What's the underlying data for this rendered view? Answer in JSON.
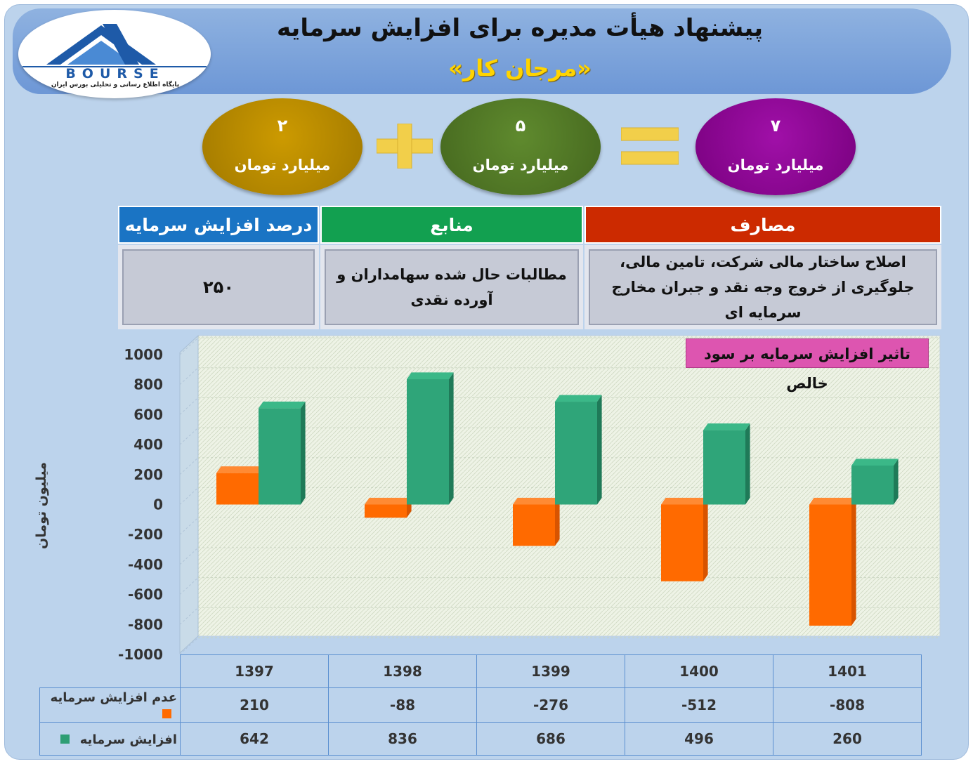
{
  "header": {
    "title": "پیشنهاد هیأت مدیره برای افزایش سرمایه",
    "subtitle": "«مرجان کار»"
  },
  "logo": {
    "word": "BOURSE",
    "tagline": "پایگاه اطلاع رسانی و تحلیلی بورس ایران"
  },
  "equation": {
    "left": {
      "value": "۲",
      "unit": "میلیارد تومان",
      "color": "#cc9a00"
    },
    "middle": {
      "value": "۵",
      "unit": "میلیارد تومان",
      "color": "#5f8a2e"
    },
    "right": {
      "value": "۷",
      "unit": "میلیارد تومان",
      "color": "#a010a8"
    },
    "plus_icon": "plus-icon",
    "equals_icon": "equals-icon",
    "operator_color": "#f2cf4a"
  },
  "info_table": {
    "headers": {
      "percent": "درصد افزایش سرمایه",
      "sources": "منابع",
      "uses": "مصارف"
    },
    "header_colors": {
      "percent": "#1a74c4",
      "sources": "#12a050",
      "uses": "#cc2a00"
    },
    "values": {
      "percent": "۲۵۰",
      "sources": "مطالبات حال شده سهامداران و آورده نقدی",
      "uses": "اصلاح ساختار مالی شرکت، تامین مالی، جلوگیری از خروج وجه نقد و جبران مخارج سرمایه ای"
    }
  },
  "chart_data": {
    "type": "bar",
    "title": "تاثیر افزایش سرمایه بر سود خالص",
    "ylabel": "میلیون تومان",
    "ylim": [
      -1000,
      1000
    ],
    "yticks": [
      1000,
      800,
      600,
      400,
      200,
      0,
      -200,
      -400,
      -600,
      -800,
      -1000
    ],
    "categories": [
      "1397",
      "1398",
      "1399",
      "1400",
      "1401"
    ],
    "series": [
      {
        "name": "عدم افزایش سرمایه",
        "values": [
          210,
          -88,
          -276,
          -512,
          -808
        ],
        "color": "#ff6a00"
      },
      {
        "name": "افزایش سرمایه",
        "values": [
          642,
          836,
          686,
          496,
          260
        ],
        "color": "#2e9e74"
      }
    ],
    "legend_position": "bottom-table"
  }
}
